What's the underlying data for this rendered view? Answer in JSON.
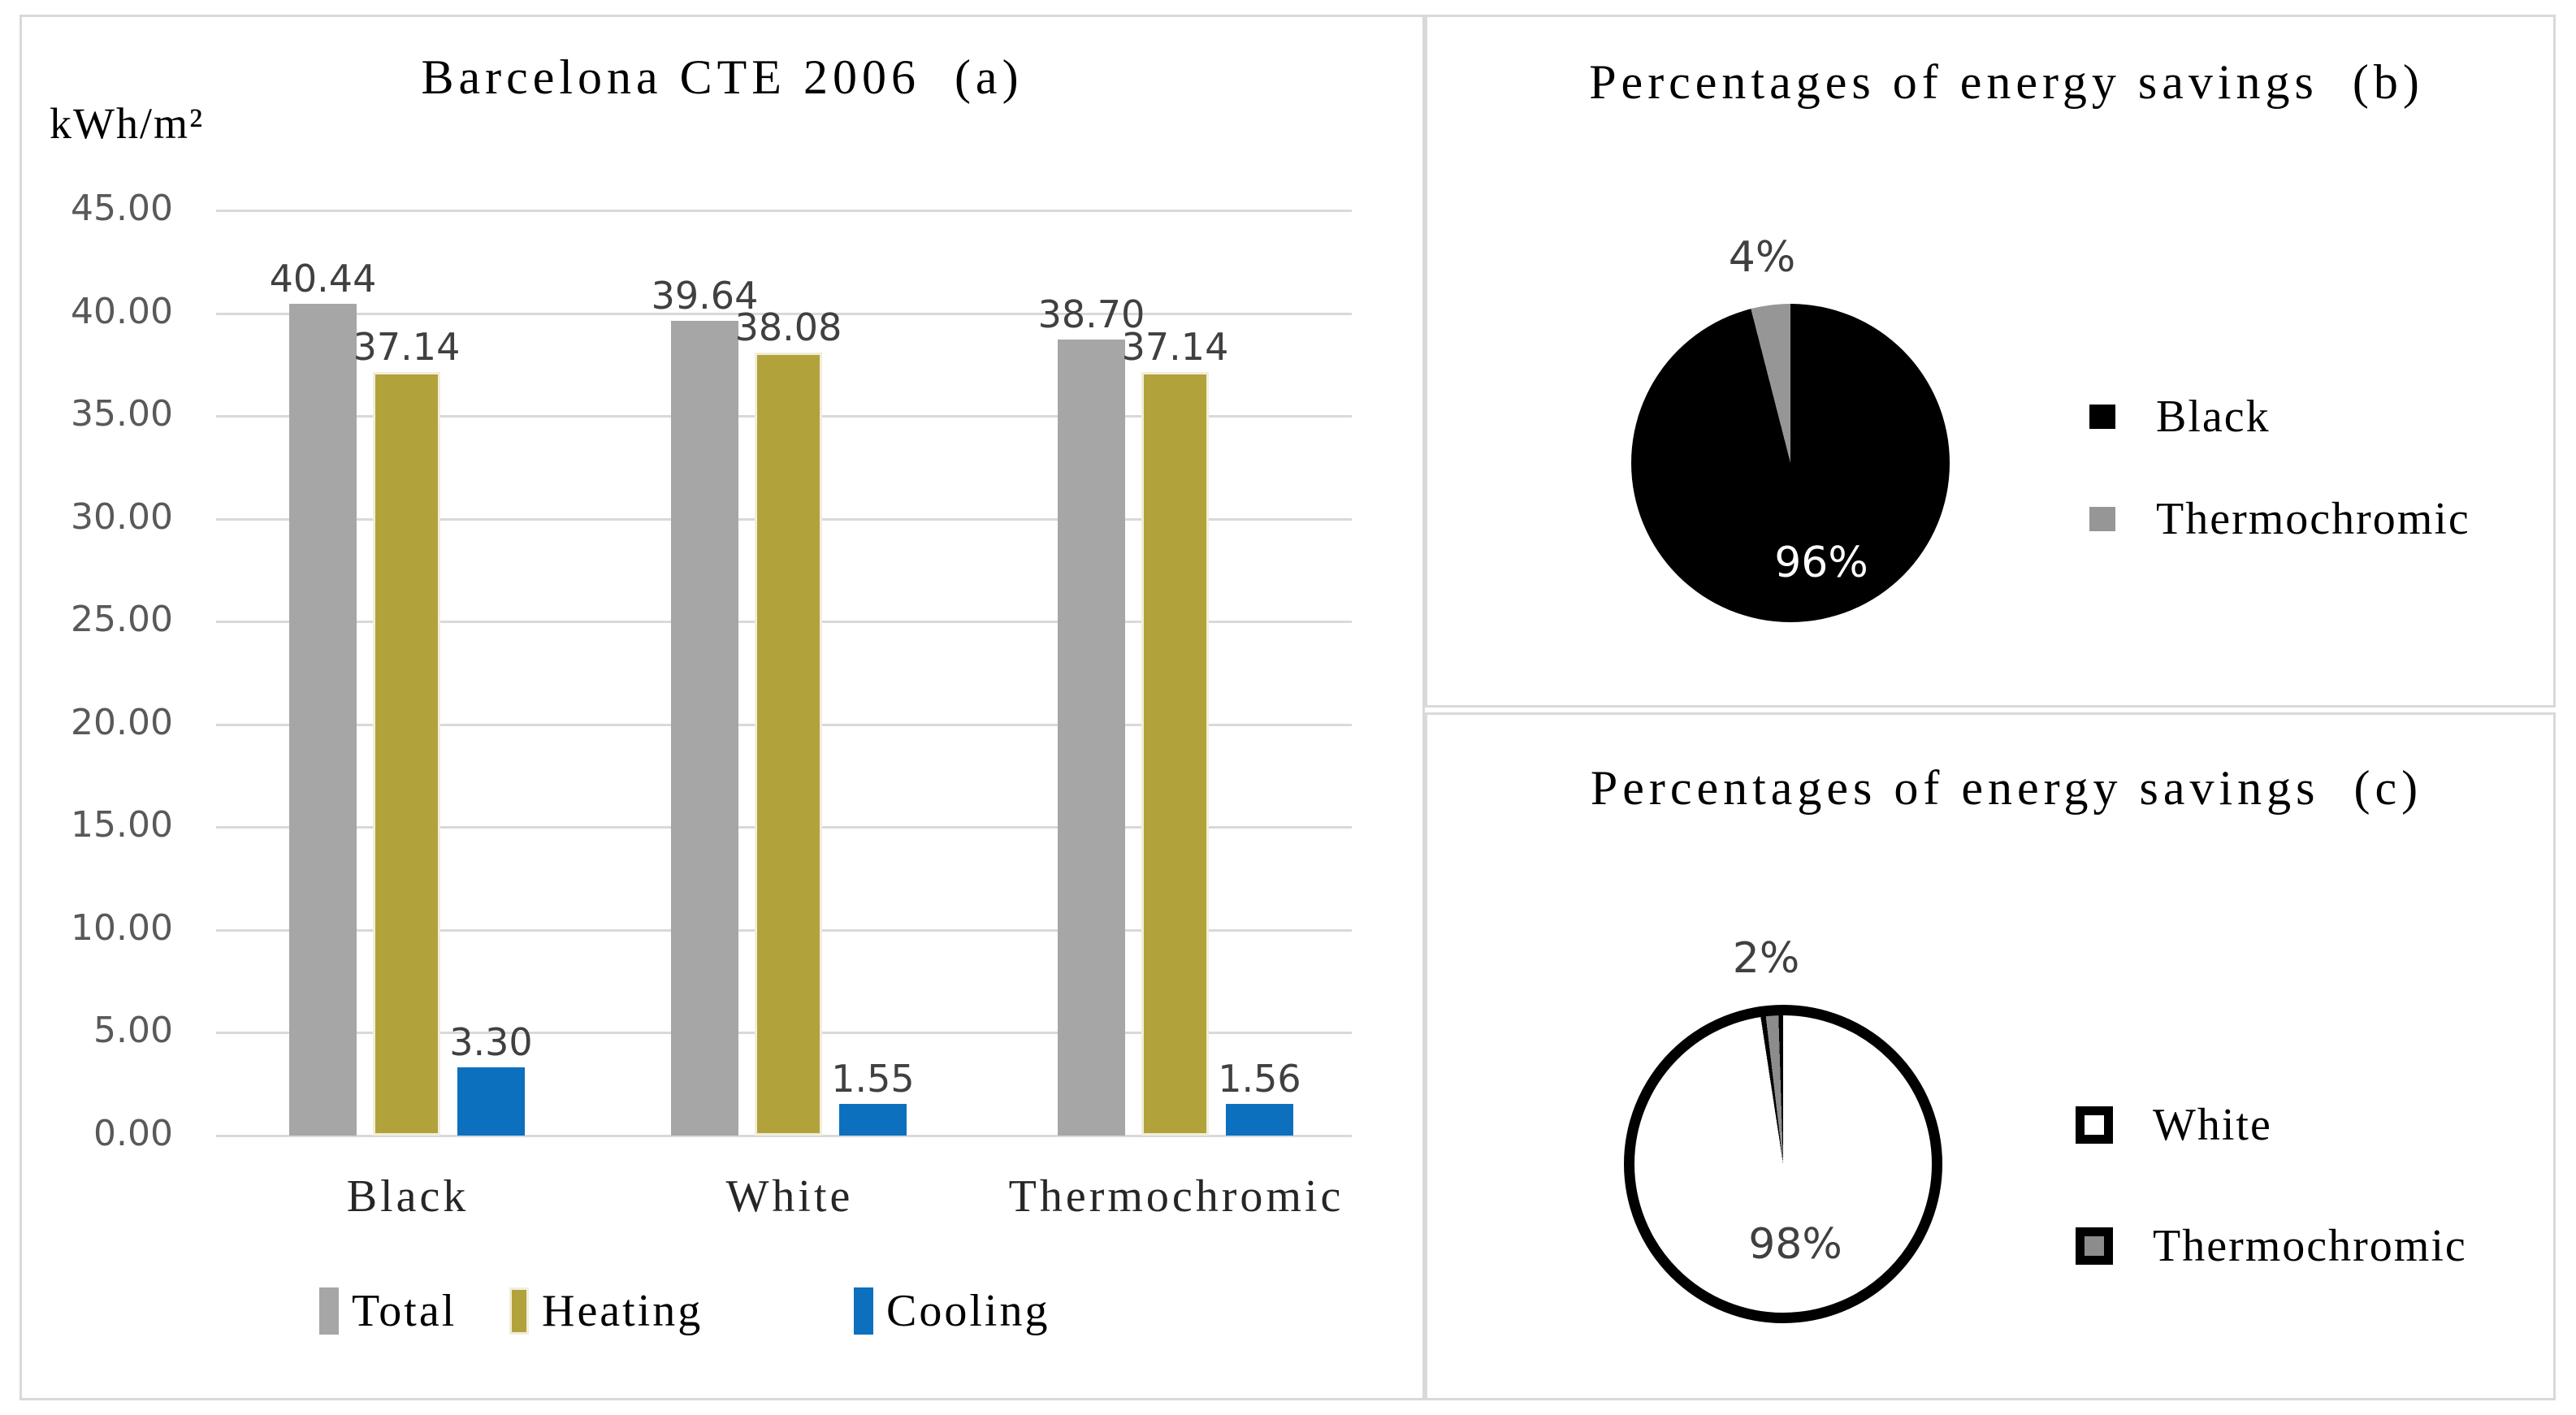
{
  "figure": {
    "panel_a_title": "Barcelona CTE 2006  (a)",
    "panel_b_title": "Percentages of energy savings  (b)",
    "panel_c_title": "Percentages of energy savings  (c)",
    "border_color": "#D9D9D9"
  },
  "chart_data": [
    {
      "id": "bar_a",
      "type": "bar",
      "title": "Barcelona CTE 2006  (a)",
      "unit_label": "kWh/m²",
      "categories": [
        "Black",
        "White",
        "Thermochromic"
      ],
      "series": [
        {
          "name": "Total",
          "color": "#A6A6A6",
          "values": [
            40.44,
            39.64,
            38.7
          ]
        },
        {
          "name": "Heating",
          "color": "#B2A23B",
          "values": [
            37.14,
            38.08,
            37.14
          ]
        },
        {
          "name": "Cooling",
          "color": "#0D70BE",
          "values": [
            3.3,
            1.55,
            1.56
          ]
        }
      ],
      "ylim": [
        0,
        45
      ],
      "ytick_step": 5,
      "ytick_format_decimals": 2,
      "grid": true,
      "gridline_color": "#D9D9D9",
      "tick_color": "#595959",
      "value_label_color": "#404040",
      "legend_position": "bottom"
    },
    {
      "id": "pie_b",
      "type": "pie",
      "title": "Percentages of energy savings  (b)",
      "slices": [
        {
          "label": "Black",
          "value": 96,
          "color": "#000000",
          "text_label": "96%",
          "label_color": "#FFFFFF",
          "label_pos": "inside-bottom"
        },
        {
          "label": "Thermochromic",
          "value": 4,
          "color": "#969696",
          "text_label": "4%",
          "label_color": "#404040",
          "label_pos": "outside-top"
        }
      ],
      "legend_position": "right"
    },
    {
      "id": "pie_c",
      "type": "pie",
      "title": "Percentages of energy savings  (c)",
      "slices": [
        {
          "label": "White",
          "value": 98,
          "color": "#FFFFFF",
          "outline": "#000000",
          "text_label": "98%",
          "label_color": "#404040",
          "label_pos": "inside-bottom"
        },
        {
          "label": "Thermochromic",
          "value": 2,
          "color": "#8C8C8C",
          "outline": "#000000",
          "text_label": "2%",
          "label_color": "#404040",
          "label_pos": "outside-top"
        }
      ],
      "legend_position": "right"
    }
  ]
}
